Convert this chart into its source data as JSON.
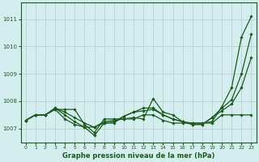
{
  "xlabel": "Graphe pression niveau de la mer (hPa)",
  "background_color": "#d4eef0",
  "grid_color": "#c0d4d8",
  "line_color": "#1a5c1a",
  "marker_color": "#1a5c1a",
  "xlim": [
    -0.5,
    23.5
  ],
  "ylim": [
    1006.5,
    1011.6
  ],
  "yticks": [
    1007,
    1008,
    1009,
    1010,
    1011
  ],
  "xticks": [
    0,
    1,
    2,
    3,
    4,
    5,
    6,
    7,
    8,
    9,
    10,
    11,
    12,
    13,
    14,
    15,
    16,
    17,
    18,
    19,
    20,
    21,
    22,
    23
  ],
  "series": [
    [
      1007.3,
      1007.5,
      1007.5,
      1007.7,
      1007.7,
      1007.7,
      1007.15,
      1006.85,
      1007.35,
      1007.35,
      1007.35,
      1007.4,
      1007.35,
      1008.1,
      1007.6,
      1007.5,
      1007.25,
      1007.2,
      1007.2,
      1007.25,
      1007.8,
      1008.5,
      1010.35,
      1011.1
    ],
    [
      1007.3,
      1007.5,
      1007.5,
      1007.7,
      1007.35,
      1007.15,
      1007.05,
      1007.05,
      1007.25,
      1007.3,
      1007.35,
      1007.35,
      1007.5,
      1007.5,
      1007.3,
      1007.2,
      1007.2,
      1007.2,
      1007.2,
      1007.2,
      1007.5,
      1007.5,
      1007.5,
      1007.5
    ],
    [
      1007.3,
      1007.5,
      1007.5,
      1007.75,
      1007.5,
      1007.25,
      1007.05,
      1006.75,
      1007.2,
      1007.2,
      1007.45,
      1007.6,
      1007.75,
      1007.75,
      1007.5,
      1007.35,
      1007.25,
      1007.15,
      1007.15,
      1007.4,
      1007.65,
      1007.9,
      1008.5,
      1009.6
    ],
    [
      1007.3,
      1007.5,
      1007.5,
      1007.75,
      1007.6,
      1007.4,
      1007.2,
      1007.05,
      1007.2,
      1007.25,
      1007.45,
      1007.6,
      1007.65,
      1007.7,
      1007.5,
      1007.35,
      1007.25,
      1007.15,
      1007.15,
      1007.4,
      1007.75,
      1008.05,
      1009.0,
      1010.45
    ]
  ]
}
